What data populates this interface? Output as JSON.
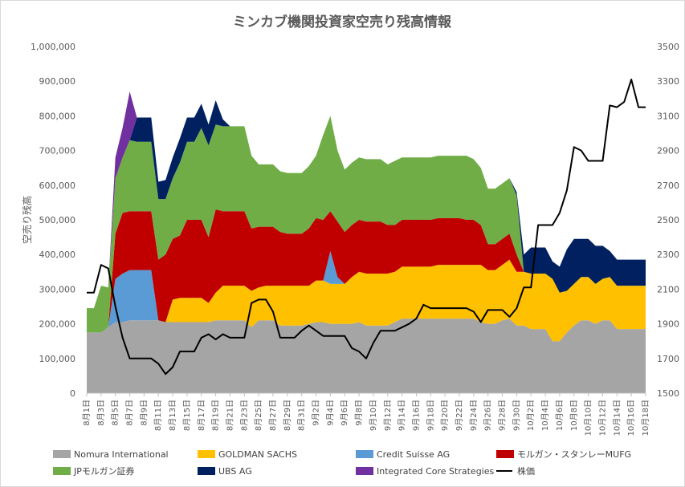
{
  "chart_data": {
    "type": "area",
    "title": "ミンカブ機関投資家空売り残高情報",
    "ylabel": "空売り残高",
    "ylim": [
      0,
      1000000
    ],
    "y_ticks": [
      "0",
      "100,000",
      "200,000",
      "300,000",
      "400,000",
      "500,000",
      "600,000",
      "700,000",
      "800,000",
      "900,000",
      "1,000,000"
    ],
    "y2lim": [
      1500,
      3500
    ],
    "y2_ticks": [
      "1500",
      "1700",
      "1900",
      "2100",
      "2300",
      "2500",
      "2700",
      "2900",
      "3100",
      "3300",
      "3500"
    ],
    "x_tick_labels": [
      "8月1日",
      "8月3日",
      "8月5日",
      "8月7日",
      "8月9日",
      "8月11日",
      "8月13日",
      "8月15日",
      "8月17日",
      "8月19日",
      "8月21日",
      "8月23日",
      "8月25日",
      "8月27日",
      "8月29日",
      "8月31日",
      "9月2日",
      "9月4日",
      "9月6日",
      "9月8日",
      "9月10日",
      "9月12日",
      "9月14日",
      "9月16日",
      "9月18日",
      "9月20日",
      "9月22日",
      "9月24日",
      "9月26日",
      "9月28日",
      "9月30日",
      "10月2日",
      "10月4日",
      "10月6日",
      "10月8日",
      "10月10日",
      "10月12日",
      "10月14日",
      "10月16日",
      "10月18日"
    ],
    "x_days": [
      1,
      2,
      3,
      4,
      5,
      6,
      7,
      8,
      9,
      10,
      11,
      12,
      13,
      14,
      15,
      16,
      17,
      18,
      19,
      20,
      21,
      22,
      23,
      24,
      25,
      26,
      27,
      28,
      29,
      30,
      31,
      32,
      33,
      34,
      35,
      36,
      37,
      38,
      39,
      40,
      41,
      42,
      43,
      44,
      45,
      46,
      47,
      48,
      49,
      50,
      51,
      52,
      53,
      54,
      55,
      56,
      57,
      58,
      59,
      60,
      61,
      62,
      63,
      64,
      65,
      66,
      67,
      68,
      69,
      70,
      71,
      72,
      73,
      74,
      75,
      76,
      77,
      78,
      79
    ],
    "series": [
      {
        "name": "Nomura International",
        "color": "#a5a5a5",
        "values": [
          175000,
          175000,
          175000,
          190000,
          205000,
          205000,
          210000,
          210000,
          210000,
          210000,
          210000,
          205000,
          205000,
          205000,
          205000,
          205000,
          205000,
          205000,
          210000,
          210000,
          210000,
          210000,
          210000,
          190000,
          210000,
          210000,
          210000,
          195000,
          195000,
          195000,
          195000,
          200000,
          205000,
          205000,
          200000,
          200000,
          200000,
          200000,
          205000,
          195000,
          195000,
          195000,
          195000,
          205000,
          215000,
          215000,
          215000,
          215000,
          215000,
          215000,
          215000,
          215000,
          215000,
          215000,
          215000,
          205000,
          200000,
          200000,
          210000,
          215000,
          195000,
          195000,
          185000,
          185000,
          185000,
          150000,
          150000,
          175000,
          195000,
          210000,
          210000,
          200000,
          210000,
          210000,
          185000,
          185000,
          185000,
          185000,
          185000
        ]
      },
      {
        "name": "GOLDMAN SACHS",
        "color": "#ffc000",
        "values": [
          0,
          0,
          0,
          0,
          0,
          0,
          0,
          0,
          0,
          0,
          0,
          0,
          65000,
          70000,
          70000,
          70000,
          70000,
          55000,
          80000,
          100000,
          100000,
          100000,
          100000,
          105000,
          95000,
          100000,
          100000,
          115000,
          115000,
          115000,
          115000,
          110000,
          120000,
          120000,
          115000,
          115000,
          115000,
          135000,
          145000,
          150000,
          150000,
          150000,
          150000,
          145000,
          150000,
          150000,
          150000,
          150000,
          150000,
          155000,
          155000,
          155000,
          155000,
          155000,
          155000,
          165000,
          155000,
          155000,
          160000,
          170000,
          155000,
          155000,
          160000,
          160000,
          160000,
          180000,
          140000,
          120000,
          120000,
          125000,
          125000,
          115000,
          120000,
          125000,
          125000,
          125000,
          125000,
          125000,
          125000
        ]
      },
      {
        "name": "Credit Suisse AG",
        "color": "#5b9bd5",
        "values": [
          0,
          0,
          0,
          0,
          125000,
          140000,
          145000,
          145000,
          145000,
          145000,
          0,
          0,
          0,
          0,
          0,
          0,
          0,
          0,
          0,
          0,
          0,
          0,
          0,
          0,
          0,
          0,
          0,
          0,
          0,
          0,
          0,
          0,
          0,
          0,
          95000,
          20000,
          0,
          0,
          0,
          0,
          0,
          0,
          0,
          0,
          0,
          0,
          0,
          0,
          0,
          0,
          0,
          0,
          0,
          0,
          0,
          0,
          0,
          0,
          0,
          0,
          0,
          0,
          0,
          0,
          0,
          0,
          0,
          0,
          0,
          0,
          0,
          0,
          0,
          0,
          0,
          0,
          0,
          0,
          0
        ]
      },
      {
        "name": "モルガン・スタンレーMUFG",
        "color": "#c00000",
        "values": [
          0,
          0,
          0,
          0,
          130000,
          175000,
          170000,
          170000,
          170000,
          170000,
          175000,
          195000,
          175000,
          180000,
          225000,
          225000,
          225000,
          190000,
          240000,
          215000,
          215000,
          215000,
          215000,
          180000,
          175000,
          170000,
          170000,
          155000,
          150000,
          150000,
          150000,
          165000,
          180000,
          175000,
          115000,
          160000,
          150000,
          150000,
          150000,
          150000,
          150000,
          150000,
          140000,
          135000,
          135000,
          135000,
          135000,
          135000,
          135000,
          135000,
          135000,
          135000,
          135000,
          130000,
          130000,
          115000,
          75000,
          75000,
          75000,
          75000,
          50000,
          0,
          0,
          0,
          0,
          0,
          0,
          0,
          0,
          0,
          0,
          0,
          0,
          0,
          0,
          0,
          0,
          0,
          0
        ]
      },
      {
        "name": "JPモルガン証券",
        "color": "#70ad47",
        "values": [
          70000,
          70000,
          135000,
          115000,
          160000,
          160000,
          205000,
          200000,
          200000,
          200000,
          175000,
          160000,
          175000,
          210000,
          225000,
          225000,
          265000,
          265000,
          245000,
          245000,
          245000,
          245000,
          245000,
          210000,
          180000,
          180000,
          180000,
          175000,
          175000,
          175000,
          175000,
          180000,
          180000,
          245000,
          275000,
          205000,
          180000,
          180000,
          180000,
          180000,
          180000,
          180000,
          175000,
          185000,
          180000,
          180000,
          180000,
          180000,
          180000,
          180000,
          180000,
          180000,
          180000,
          185000,
          175000,
          165000,
          160000,
          160000,
          160000,
          160000,
          170000,
          0,
          0,
          0,
          0,
          0,
          0,
          0,
          0,
          0,
          0,
          0,
          0,
          0,
          0,
          0,
          0,
          0,
          0
        ]
      },
      {
        "name": "UBS AG",
        "color": "#002060",
        "values": [
          0,
          0,
          0,
          0,
          0,
          0,
          0,
          70000,
          70000,
          70000,
          50000,
          55000,
          60000,
          70000,
          70000,
          70000,
          70000,
          60000,
          70000,
          20000,
          0,
          0,
          0,
          0,
          0,
          0,
          0,
          0,
          0,
          0,
          0,
          0,
          0,
          0,
          0,
          0,
          0,
          0,
          0,
          0,
          0,
          0,
          0,
          0,
          0,
          0,
          0,
          0,
          0,
          0,
          0,
          0,
          0,
          0,
          0,
          0,
          0,
          0,
          0,
          0,
          10000,
          50000,
          75000,
          75000,
          75000,
          50000,
          75000,
          120000,
          130000,
          110000,
          110000,
          110000,
          95000,
          75000,
          75000,
          75000,
          75000,
          75000,
          75000
        ]
      },
      {
        "name": "Integrated Core Strategies",
        "color": "#7030a0",
        "values": [
          0,
          0,
          0,
          0,
          60000,
          85000,
          140000,
          0,
          0,
          0,
          0,
          0,
          0,
          0,
          0,
          0,
          0,
          0,
          0,
          0,
          0,
          0,
          0,
          0,
          0,
          0,
          0,
          0,
          0,
          0,
          0,
          0,
          0,
          0,
          0,
          0,
          0,
          0,
          0,
          0,
          0,
          0,
          0,
          0,
          0,
          0,
          0,
          0,
          0,
          0,
          0,
          0,
          0,
          0,
          0,
          0,
          0,
          0,
          0,
          0,
          0,
          0,
          0,
          0,
          0,
          0,
          0,
          0,
          0,
          0,
          0,
          0,
          0,
          0,
          0,
          0,
          0,
          0,
          0
        ]
      }
    ],
    "line_series": {
      "name": "株価",
      "color": "#000000",
      "axis": "right",
      "values": [
        2080,
        2080,
        2240,
        2220,
        2000,
        1820,
        1700,
        1700,
        1700,
        1700,
        1670,
        1610,
        1650,
        1740,
        1740,
        1740,
        1820,
        1840,
        1810,
        1840,
        1820,
        1820,
        1820,
        2020,
        2040,
        2040,
        1970,
        1820,
        1820,
        1820,
        1860,
        1890,
        1860,
        1830,
        1830,
        1830,
        1830,
        1760,
        1740,
        1700,
        1790,
        1860,
        1860,
        1860,
        1880,
        1900,
        1930,
        2010,
        1990,
        1990,
        1990,
        1990,
        1990,
        1990,
        1970,
        1910,
        1980,
        1980,
        1980,
        1940,
        1990,
        2110,
        2110,
        2470,
        2470,
        2470,
        2540,
        2670,
        2920,
        2900,
        2840,
        2840,
        2840,
        3160,
        3150,
        3180,
        3310,
        3150,
        3150
      ]
    },
    "legend": [
      {
        "label": "Nomura International",
        "color": "#a5a5a5",
        "kind": "area"
      },
      {
        "label": "GOLDMAN SACHS",
        "color": "#ffc000",
        "kind": "area"
      },
      {
        "label": "Credit Suisse AG",
        "color": "#5b9bd5",
        "kind": "area"
      },
      {
        "label": "モルガン・スタンレーMUFG",
        "color": "#c00000",
        "kind": "area"
      },
      {
        "label": "JPモルガン証券",
        "color": "#70ad47",
        "kind": "area"
      },
      {
        "label": "UBS AG",
        "color": "#002060",
        "kind": "area"
      },
      {
        "label": "Integrated Core Strategies",
        "color": "#7030a0",
        "kind": "area"
      },
      {
        "label": "株価",
        "color": "#000000",
        "kind": "line"
      }
    ],
    "grid": false,
    "legend_position": "bottom"
  }
}
